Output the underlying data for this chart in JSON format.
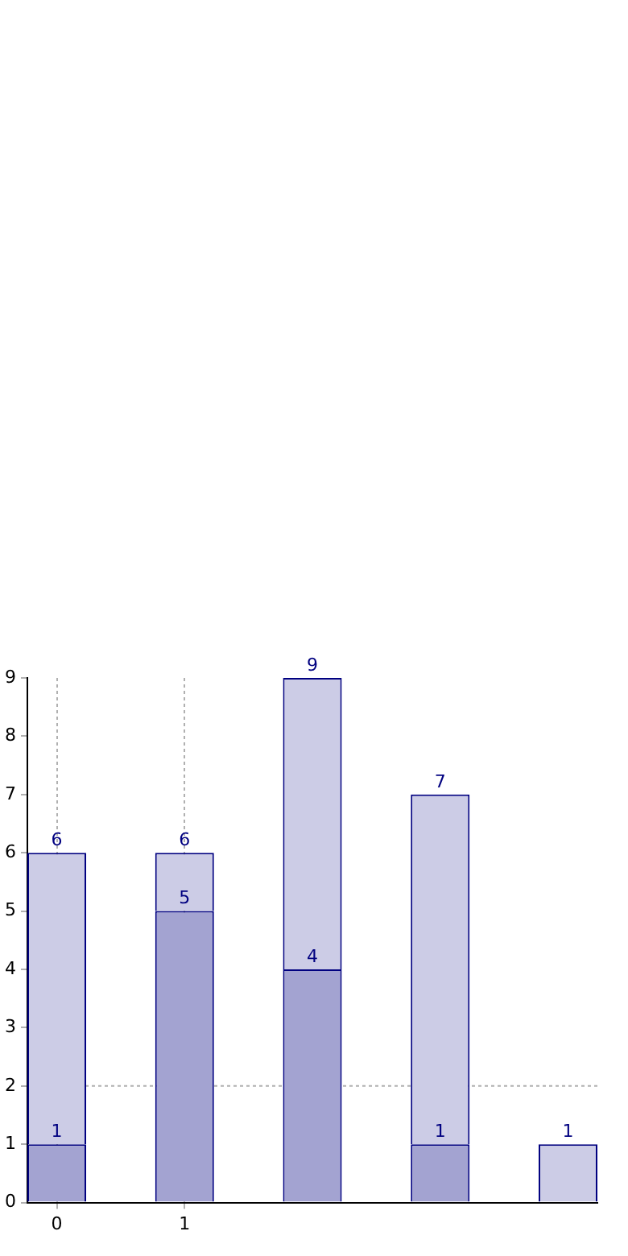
{
  "chart_data": {
    "type": "bar",
    "x": [
      0,
      1,
      2,
      3,
      4
    ],
    "stacked": true,
    "series": [
      {
        "color": "#a3a3d1",
        "values": [
          1,
          5,
          4,
          1,
          null
        ],
        "value_labels": [
          "1",
          "5",
          "4",
          "1",
          null
        ]
      },
      {
        "color": "#cccce6",
        "values": [
          5,
          1,
          5,
          6,
          1
        ]
      }
    ],
    "totals": [
      "6",
      "6",
      "9",
      "7",
      "1"
    ],
    "xlim": [
      -0.23,
      4.23
    ],
    "xticks": [
      0,
      1
    ],
    "ylim": [
      0,
      9
    ],
    "yticks": [
      0,
      1,
      2,
      3,
      4,
      5,
      6,
      7,
      8,
      9
    ],
    "grid": "x",
    "ref_lines": [
      {
        "axis": "y",
        "value": 2,
        "line_style": "dotted",
        "color": "#b0b0b0"
      }
    ]
  }
}
